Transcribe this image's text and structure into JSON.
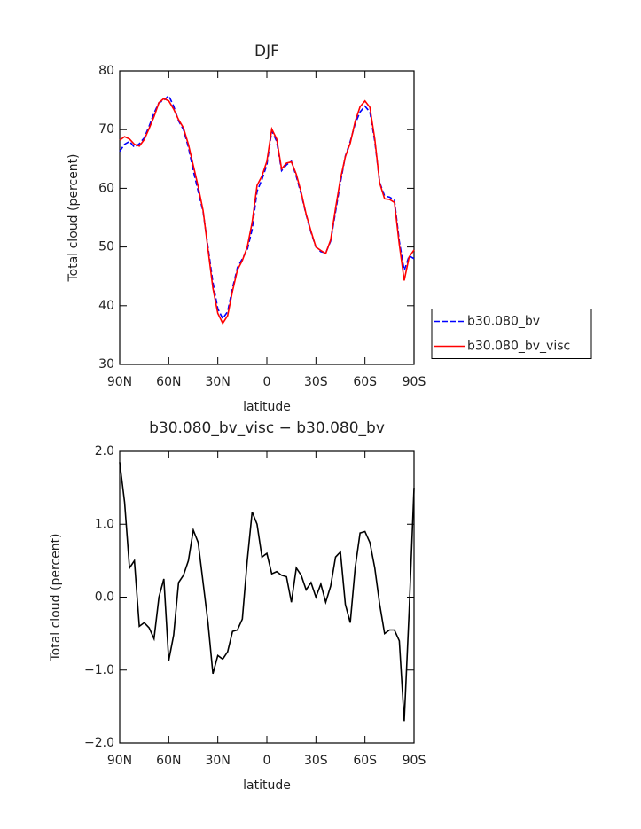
{
  "chart_data": [
    {
      "type": "line",
      "title": "DJF",
      "xlabel": "latitude",
      "ylabel": "Total cloud (percent)",
      "x": [
        90,
        87,
        84,
        81,
        78,
        75,
        72,
        69,
        66,
        63,
        60,
        57,
        54,
        51,
        48,
        45,
        42,
        39,
        36,
        33,
        30,
        27,
        24,
        21,
        18,
        15,
        12,
        9,
        6,
        3,
        0,
        -3,
        -6,
        -9,
        -12,
        -15,
        -18,
        -21,
        -24,
        -27,
        -30,
        -33,
        -36,
        -39,
        -42,
        -45,
        -48,
        -51,
        -54,
        -57,
        -60,
        -63,
        -66,
        -69,
        -72,
        -75,
        -78,
        -81,
        -84,
        -87,
        -90
      ],
      "xlim": [
        90,
        -90
      ],
      "xticks": [
        {
          "value": 90,
          "label": "90N"
        },
        {
          "value": 60,
          "label": "60N"
        },
        {
          "value": 30,
          "label": "30N"
        },
        0,
        {
          "value": -30,
          "label": "30S"
        },
        {
          "value": -60,
          "label": "60S"
        },
        {
          "value": -90,
          "label": "90S"
        }
      ],
      "ylim": [
        30,
        80
      ],
      "yticks": [
        30,
        40,
        50,
        60,
        70,
        80
      ],
      "legend": "right",
      "series": [
        {
          "name": "b30.080_bv",
          "color": "#0000ff",
          "style": "dashed",
          "values": [
            66.3,
            67.5,
            68.0,
            67.0,
            67.6,
            68.6,
            70.6,
            72.8,
            74.6,
            75.0,
            75.8,
            74.0,
            71.5,
            70.0,
            67.0,
            63.0,
            59.5,
            56.0,
            50.0,
            44.0,
            39.5,
            37.8,
            39.0,
            43.0,
            46.5,
            48.0,
            49.5,
            53.0,
            59.5,
            61.5,
            64.0,
            69.8,
            68.0,
            63.0,
            64.0,
            64.6,
            62.0,
            59.0,
            55.5,
            52.5,
            50.0,
            49.2,
            49.0,
            51.0,
            56.0,
            61.0,
            65.5,
            68.0,
            71.0,
            73.0,
            74.0,
            73.0,
            68.0,
            61.0,
            58.7,
            58.5,
            58.0,
            51.0,
            46.0,
            48.5,
            48.0
          ]
        },
        {
          "name": "b30.080_bv_visc",
          "color": "#ff0000",
          "style": "solid",
          "values": [
            68.2,
            68.8,
            68.4,
            67.5,
            67.2,
            68.3,
            70.2,
            72.2,
            74.6,
            75.3,
            74.9,
            73.5,
            71.7,
            70.3,
            67.5,
            63.9,
            60.3,
            56.2,
            49.6,
            43.0,
            38.7,
            37.0,
            38.3,
            42.5,
            46.1,
            47.7,
            50.0,
            54.2,
            60.5,
            62.1,
            64.6,
            70.1,
            68.4,
            63.3,
            64.3,
            64.5,
            62.4,
            59.3,
            55.6,
            52.7,
            50.0,
            49.4,
            48.9,
            51.2,
            56.6,
            61.6,
            65.4,
            67.7,
            71.4,
            73.9,
            74.9,
            73.8,
            68.4,
            60.9,
            58.2,
            58.1,
            57.6,
            50.4,
            44.3,
            48.3,
            49.5
          ]
        }
      ]
    },
    {
      "type": "line",
      "title": "b30.080_bv_visc − b30.080_bv",
      "xlabel": "latitude",
      "ylabel": "Total cloud (percent)",
      "x": [
        90,
        87,
        84,
        81,
        78,
        75,
        72,
        69,
        66,
        63,
        60,
        57,
        54,
        51,
        48,
        45,
        42,
        39,
        36,
        33,
        30,
        27,
        24,
        21,
        18,
        15,
        12,
        9,
        6,
        3,
        0,
        -3,
        -6,
        -9,
        -12,
        -15,
        -18,
        -21,
        -24,
        -27,
        -30,
        -33,
        -36,
        -39,
        -42,
        -45,
        -48,
        -51,
        -54,
        -57,
        -60,
        -63,
        -66,
        -69,
        -72,
        -75,
        -78,
        -81,
        -84,
        -87,
        -90
      ],
      "xlim": [
        90,
        -90
      ],
      "xticks": [
        {
          "value": 90,
          "label": "90N"
        },
        {
          "value": 60,
          "label": "60N"
        },
        {
          "value": 30,
          "label": "30N"
        },
        0,
        {
          "value": -30,
          "label": "30S"
        },
        {
          "value": -60,
          "label": "60S"
        },
        {
          "value": -90,
          "label": "90S"
        }
      ],
      "ylim": [
        -2,
        2
      ],
      "yticks": [
        {
          "value": -2,
          "label": "−2.0"
        },
        {
          "value": -1,
          "label": "−1.0"
        },
        {
          "value": 0,
          "label": "0.0"
        },
        {
          "value": 1,
          "label": "1.0"
        },
        {
          "value": 2,
          "label": "2.0"
        }
      ],
      "series": [
        {
          "color": "#000000",
          "style": "solid",
          "values": [
            1.85,
            1.3,
            0.4,
            0.5,
            -0.4,
            -0.35,
            -0.42,
            -0.57,
            0.0,
            0.25,
            -0.87,
            -0.52,
            0.2,
            0.3,
            0.5,
            0.92,
            0.75,
            0.2,
            -0.35,
            -1.05,
            -0.8,
            -0.85,
            -0.75,
            -0.47,
            -0.45,
            -0.3,
            0.5,
            1.17,
            1.0,
            0.55,
            0.6,
            0.32,
            0.35,
            0.3,
            0.28,
            -0.07,
            0.4,
            0.3,
            0.1,
            0.2,
            0.0,
            0.18,
            -0.07,
            0.15,
            0.55,
            0.62,
            -0.1,
            -0.35,
            0.4,
            0.88,
            0.9,
            0.75,
            0.4,
            -0.1,
            -0.5,
            -0.45,
            -0.45,
            -0.6,
            -1.7,
            -0.2,
            1.5
          ]
        }
      ]
    }
  ]
}
